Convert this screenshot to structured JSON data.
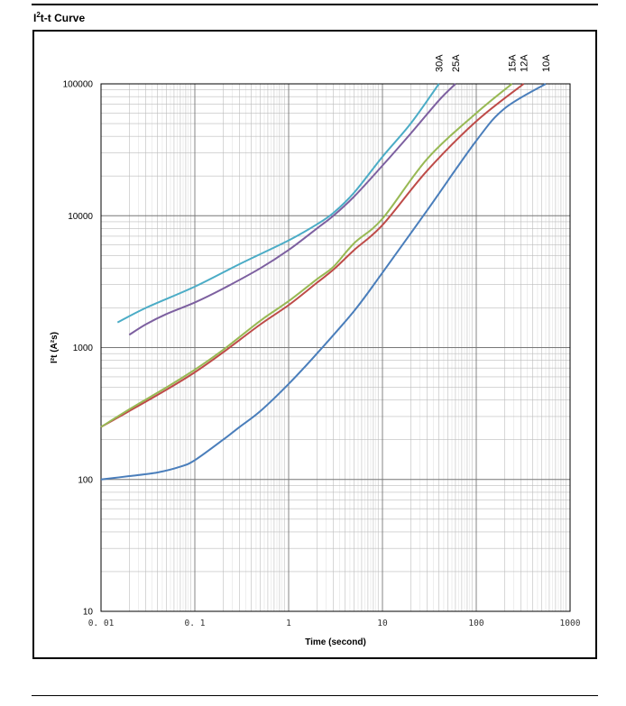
{
  "page": {
    "heading_prefix": "I",
    "heading_sup": "2",
    "heading_suffix": "t-t Curve"
  },
  "chart_data": {
    "type": "line",
    "title": "",
    "xlabel": "Time (second)",
    "ylabel": "I²t (A²s)",
    "xscale": "log",
    "yscale": "log",
    "xlim": [
      0.01,
      1000
    ],
    "ylim": [
      10,
      100000
    ],
    "grid": true,
    "x_ticks": [
      {
        "value": 0.01,
        "label": "0. 01"
      },
      {
        "value": 0.1,
        "label": "0. 1"
      },
      {
        "value": 1,
        "label": "1"
      },
      {
        "value": 10,
        "label": "10"
      },
      {
        "value": 100,
        "label": "100"
      },
      {
        "value": 1000,
        "label": "1000"
      }
    ],
    "y_ticks": [
      {
        "value": 10,
        "label": "10"
      },
      {
        "value": 100,
        "label": "100"
      },
      {
        "value": 1000,
        "label": "1000"
      },
      {
        "value": 10000,
        "label": "10000"
      },
      {
        "value": 100000,
        "label": "100000"
      }
    ],
    "series": [
      {
        "name": "10A",
        "color": "#4a7ebb",
        "points": [
          [
            0.01,
            100
          ],
          [
            0.02,
            106
          ],
          [
            0.04,
            113
          ],
          [
            0.07,
            125
          ],
          [
            0.1,
            140
          ],
          [
            0.2,
            200
          ],
          [
            0.3,
            250
          ],
          [
            0.5,
            330
          ],
          [
            1,
            530
          ],
          [
            2,
            900
          ],
          [
            5,
            1900
          ],
          [
            10,
            3700
          ],
          [
            30,
            11000
          ],
          [
            100,
            37000
          ],
          [
            200,
            65000
          ],
          [
            550,
            100000
          ]
        ]
      },
      {
        "name": "12A",
        "color": "#be4b48",
        "points": [
          [
            0.01,
            250
          ],
          [
            0.02,
            330
          ],
          [
            0.05,
            480
          ],
          [
            0.1,
            650
          ],
          [
            0.2,
            920
          ],
          [
            0.5,
            1500
          ],
          [
            1,
            2100
          ],
          [
            2,
            3100
          ],
          [
            3,
            3900
          ],
          [
            5,
            5500
          ],
          [
            10,
            8500
          ],
          [
            30,
            22000
          ],
          [
            100,
            52000
          ],
          [
            320,
            100000
          ]
        ]
      },
      {
        "name": "15A",
        "color": "#98b954",
        "points": [
          [
            0.01,
            250
          ],
          [
            0.02,
            340
          ],
          [
            0.05,
            500
          ],
          [
            0.1,
            680
          ],
          [
            0.2,
            960
          ],
          [
            0.5,
            1600
          ],
          [
            1,
            2250
          ],
          [
            2,
            3300
          ],
          [
            3,
            4100
          ],
          [
            5,
            6200
          ],
          [
            10,
            9500
          ],
          [
            30,
            27000
          ],
          [
            100,
            60000
          ],
          [
            240,
            100000
          ]
        ]
      },
      {
        "name": "25A",
        "color": "#7d60a0",
        "points": [
          [
            0.02,
            1250
          ],
          [
            0.03,
            1500
          ],
          [
            0.05,
            1800
          ],
          [
            0.1,
            2200
          ],
          [
            0.2,
            2800
          ],
          [
            0.5,
            4000
          ],
          [
            1,
            5500
          ],
          [
            2,
            8000
          ],
          [
            3,
            10000
          ],
          [
            5,
            14000
          ],
          [
            10,
            24000
          ],
          [
            20,
            42000
          ],
          [
            40,
            75000
          ],
          [
            60,
            100000
          ]
        ]
      },
      {
        "name": "30A",
        "color": "#4bacc6",
        "points": [
          [
            0.015,
            1550
          ],
          [
            0.03,
            2000
          ],
          [
            0.1,
            2900
          ],
          [
            0.3,
            4300
          ],
          [
            1,
            6500
          ],
          [
            2,
            8600
          ],
          [
            3,
            10500
          ],
          [
            5,
            15000
          ],
          [
            10,
            28000
          ],
          [
            20,
            50000
          ],
          [
            40,
            100000
          ]
        ]
      }
    ]
  }
}
